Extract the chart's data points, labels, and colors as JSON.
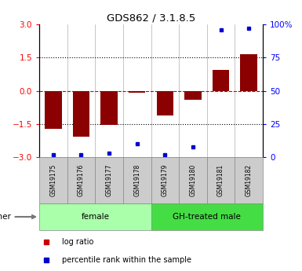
{
  "title": "GDS862 / 3.1.8.5",
  "samples": [
    "GSM19175",
    "GSM19176",
    "GSM19177",
    "GSM19178",
    "GSM19179",
    "GSM19180",
    "GSM19181",
    "GSM19182"
  ],
  "log_ratios": [
    -1.72,
    -2.08,
    -1.55,
    -0.1,
    -1.12,
    -0.42,
    0.95,
    1.65
  ],
  "percentile_ranks": [
    2,
    2,
    3,
    10,
    2,
    8,
    96,
    97
  ],
  "groups": [
    {
      "label": "female",
      "start": 0,
      "end": 4,
      "color": "#aaffaa"
    },
    {
      "label": "GH-treated male",
      "start": 4,
      "end": 8,
      "color": "#44dd44"
    }
  ],
  "bar_color": "#8b0000",
  "dot_color": "#0000cc",
  "ylim": [
    -3,
    3
  ],
  "yticks_left": [
    -3,
    -1.5,
    0,
    1.5,
    3
  ],
  "yticks_right_labels": [
    "0",
    "25",
    "50",
    "75",
    "100%"
  ],
  "bar_width": 0.6,
  "other_label": "other",
  "sample_box_color": "#cccccc",
  "sample_box_edge": "#888888",
  "legend_items": [
    {
      "label": "log ratio",
      "color": "#cc0000"
    },
    {
      "label": "percentile rank within the sample",
      "color": "#0000cc"
    }
  ],
  "figsize": [
    3.85,
    3.45
  ],
  "dpi": 100
}
